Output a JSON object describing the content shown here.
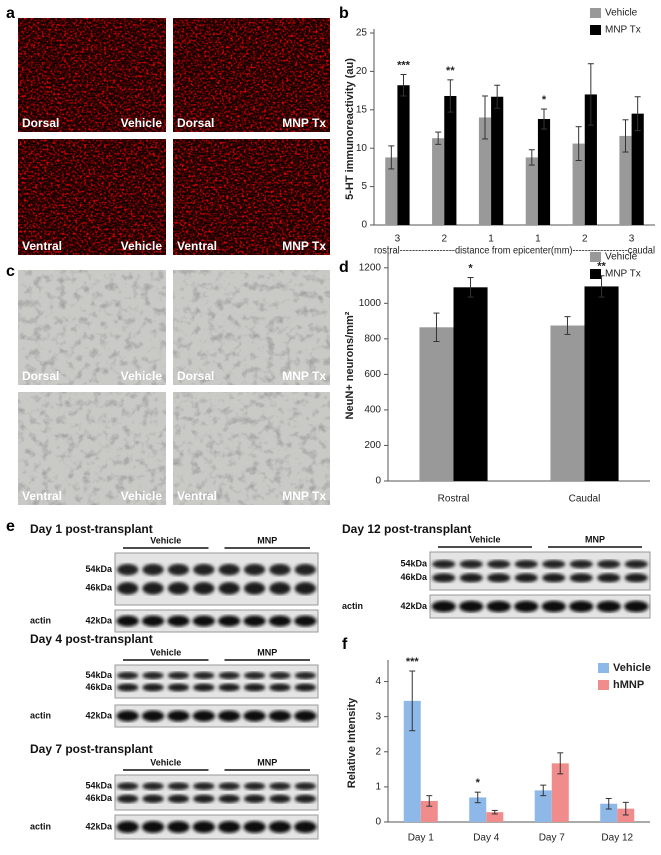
{
  "panel_labels": [
    "a",
    "b",
    "c",
    "d",
    "e",
    "f"
  ],
  "micrographs": {
    "a": [
      {
        "region": "Dorsal",
        "treatment": "Vehicle"
      },
      {
        "region": "Dorsal",
        "treatment": "MNP Tx"
      },
      {
        "region": "Ventral",
        "treatment": "Vehicle"
      },
      {
        "region": "Ventral",
        "treatment": "MNP Tx"
      }
    ],
    "c": [
      {
        "region": "Dorsal",
        "treatment": "Vehicle"
      },
      {
        "region": "Dorsal",
        "treatment": "MNP Tx"
      },
      {
        "region": "Ventral",
        "treatment": "Vehicle"
      },
      {
        "region": "Ventral",
        "treatment": "MNP Tx"
      }
    ]
  },
  "chart_data": [
    {
      "type": "bar",
      "ylabel": "5-HT immunoreactivity (au)",
      "xlabel": "rostral------------------distance from epicenter(mm)------------------caudal",
      "categories": [
        "3",
        "2",
        "1",
        "1",
        "2",
        "3"
      ],
      "series": [
        {
          "name": "Vehicle",
          "color": "#999999",
          "values": [
            8.8,
            11.3,
            14,
            8.8,
            10.6,
            11.6
          ],
          "errors": [
            1.5,
            0.8,
            2.8,
            1.0,
            2.2,
            2.1
          ]
        },
        {
          "name": "MNP Tx",
          "color": "#000000",
          "values": [
            18.2,
            16.8,
            16.7,
            13.8,
            17,
            14.5
          ],
          "errors": [
            1.4,
            2.1,
            1.5,
            1.3,
            4.0,
            2.2
          ],
          "significance": [
            "***",
            "**",
            null,
            "*",
            null,
            null
          ]
        }
      ],
      "ylim": [
        0,
        25
      ],
      "yticks": [
        0,
        5,
        10,
        15,
        20,
        25
      ],
      "legend": "top-right"
    },
    {
      "type": "bar",
      "ylabel": "NeuN+ neurons/mm²",
      "categories": [
        "Rostral",
        "Caudal"
      ],
      "series": [
        {
          "name": "Vehicle",
          "color": "#999999",
          "values": [
            865,
            875
          ],
          "errors": [
            80,
            50
          ]
        },
        {
          "name": "MNP Tx",
          "color": "#000000",
          "values": [
            1090,
            1095
          ],
          "errors": [
            55,
            60
          ],
          "significance": [
            "*",
            "**"
          ]
        }
      ],
      "ylim": [
        0,
        1300
      ],
      "yticks": [
        0,
        200,
        400,
        600,
        800,
        1000,
        1200
      ],
      "legend": "top-right"
    },
    {
      "type": "bar",
      "ylabel": "Relative Intensity",
      "categories": [
        "Day 1",
        "Day 4",
        "Day 7",
        "Day 12"
      ],
      "series": [
        {
          "name": "Vehicle",
          "color": "#8db8e8",
          "values": [
            3.45,
            0.7,
            0.9,
            0.52
          ],
          "errors": [
            0.85,
            0.15,
            0.15,
            0.15
          ],
          "significance": [
            "***",
            "*",
            null,
            null
          ]
        },
        {
          "name": "hMNP",
          "color": "#f08c8c",
          "values": [
            0.6,
            0.28,
            1.67,
            0.38
          ],
          "errors": [
            0.15,
            0.05,
            0.3,
            0.18
          ]
        }
      ],
      "ylim": [
        0,
        4.5
      ],
      "yticks": [
        0,
        1,
        2,
        3,
        4
      ],
      "legend": "top-right"
    }
  ],
  "blots": [
    {
      "title": "Day 1 post-transplant",
      "groups": [
        "Vehicle",
        "MNP"
      ],
      "markers": [
        "54kDa",
        "46kDa"
      ],
      "loading": "actin",
      "loading_marker": "42kDa"
    },
    {
      "title": "Day 12 post-transplant",
      "groups": [
        "Vehicle",
        "MNP"
      ],
      "markers": [
        "54kDa",
        "46kDa"
      ],
      "loading": "actin",
      "loading_marker": "42kDa"
    },
    {
      "title": "Day 4 post-transplant",
      "groups": [
        "Vehicle",
        "MNP"
      ],
      "markers": [
        "54kDa",
        "46kDa"
      ],
      "loading": "actin",
      "loading_marker": "42kDa"
    },
    {
      "title": "Day 7 post-transplant",
      "groups": [
        "Vehicle",
        "MNP"
      ],
      "markers": [
        "54kDa",
        "46kDa"
      ],
      "loading": "actin",
      "loading_marker": "42kDa"
    }
  ]
}
